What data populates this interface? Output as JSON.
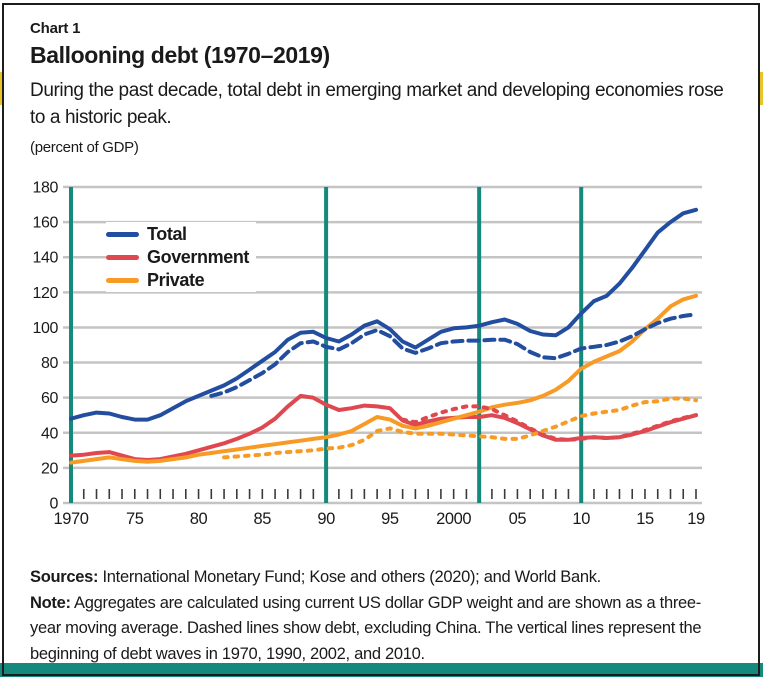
{
  "card": {
    "label": "Chart 1",
    "title": "Ballooning debt (1970–2019)",
    "subtitle": "During the past decade, total debt in emerging market and developing economies rose to a historic peak.",
    "unit_label": "(percent of GDP)",
    "sources_label": "Sources:",
    "sources_text": " International Monetary Fund; Kose and others (2020); and World Bank.",
    "note_label": "Note:",
    "note_text": " Aggregates are calculated using current US dollar GDP weight and are shown as a three-year moving average. Dashed lines show debt, excluding China. The vertical lines represent the beginning of debt waves in 1970, 1990, 2002, and 2010."
  },
  "colors": {
    "total": "#234EA0",
    "government": "#E04850",
    "private": "#F79B26",
    "wave_line": "#15897C",
    "gridline": "#C4C4C4",
    "tick": "#3A3A3A",
    "bottom_bar": "#15897C",
    "edge_accent": "#E9C428",
    "border": "#1C1C1C"
  },
  "chart_data": {
    "type": "line",
    "title": "Ballooning debt (1970–2019)",
    "ylabel": "(percent of GDP)",
    "xlabel": "",
    "x_range": [
      1970,
      2019
    ],
    "ylim": [
      0,
      180
    ],
    "grid": true,
    "legend_position": "top-left",
    "y_ticks": [
      0,
      20,
      40,
      60,
      80,
      100,
      120,
      140,
      160,
      180
    ],
    "x_tick_labels": [
      {
        "label": "1970",
        "year": 1970
      },
      {
        "label": "75",
        "year": 1975
      },
      {
        "label": "80",
        "year": 1980
      },
      {
        "label": "85",
        "year": 1985
      },
      {
        "label": "90",
        "year": 1990
      },
      {
        "label": "95",
        "year": 1995
      },
      {
        "label": "2000",
        "year": 2000
      },
      {
        "label": "05",
        "year": 2005
      },
      {
        "label": "10",
        "year": 2010
      },
      {
        "label": "15",
        "year": 2015
      },
      {
        "label": "19",
        "year": 2019
      }
    ],
    "vertical_lines": {
      "years": [
        1970,
        1990,
        2002,
        2010
      ],
      "color": "#15897C",
      "meaning": "beginning of debt waves"
    },
    "legend": [
      {
        "label": "Total",
        "color": "#234EA0"
      },
      {
        "label": "Government",
        "color": "#E04850"
      },
      {
        "label": "Private",
        "color": "#F79B26"
      }
    ],
    "series": [
      {
        "name": "Total",
        "color": "#234EA0",
        "style": "solid",
        "start_year": 1970,
        "values": [
          48,
          50,
          51.5,
          51,
          49,
          47.5,
          47.5,
          50,
          54,
          58,
          61,
          64,
          67,
          71,
          76,
          81,
          86,
          93,
          97,
          97.5,
          94,
          92,
          96,
          101,
          103.5,
          99,
          92,
          88.5,
          93,
          97.5,
          99.5,
          100,
          101,
          103,
          104.5,
          102,
          98,
          96,
          95.5,
          100,
          108,
          115,
          118,
          125,
          134,
          144,
          154,
          160,
          165,
          167
        ]
      },
      {
        "name": "Government",
        "color": "#E04850",
        "style": "solid",
        "start_year": 1970,
        "values": [
          27,
          27.5,
          28.5,
          29,
          27,
          25,
          24.5,
          25,
          26.5,
          28,
          30,
          32,
          34,
          36.5,
          39.5,
          43,
          48,
          55,
          61,
          60,
          56,
          53,
          54,
          55.5,
          55,
          54,
          47,
          44.5,
          46.5,
          48,
          48.5,
          49,
          49,
          50,
          48.5,
          45.5,
          42,
          38.5,
          36,
          36,
          37,
          37.5,
          37,
          37.5,
          39,
          41,
          43.5,
          46,
          48,
          50
        ]
      },
      {
        "name": "Private",
        "color": "#F79B26",
        "style": "solid",
        "start_year": 1970,
        "values": [
          23,
          24,
          25,
          26,
          25,
          24,
          23.5,
          24,
          25,
          26,
          27.5,
          28.5,
          29.5,
          30.5,
          31.5,
          32.5,
          33.5,
          34.5,
          35.5,
          36.5,
          37.5,
          39,
          41,
          45,
          49,
          47.5,
          44,
          42.5,
          44,
          46,
          48,
          50,
          52,
          54.5,
          56,
          57,
          58.5,
          61,
          64.5,
          69.5,
          76.5,
          80.5,
          83.5,
          86.5,
          92,
          99,
          105,
          112,
          116,
          118
        ]
      },
      {
        "name": "Total excluding China",
        "color": "#234EA0",
        "style": "dashed",
        "start_year": 1981,
        "values": [
          61,
          63,
          66,
          70,
          74,
          79,
          86,
          91,
          92,
          89,
          87.5,
          91,
          96,
          98.5,
          95,
          88,
          85.5,
          88,
          91,
          92,
          92.5,
          92.5,
          93,
          93,
          90.5,
          86,
          83,
          82.5,
          85,
          88,
          89,
          90,
          92,
          95,
          99,
          102.5,
          105,
          106.5,
          107.5
        ]
      },
      {
        "name": "Government excluding China",
        "color": "#E04850",
        "style": "dotted",
        "start_year": 1996,
        "values": [
          47.5,
          46,
          49,
          51.5,
          53.5,
          55,
          55,
          53.5,
          50,
          46.5,
          42.5,
          39,
          36.5,
          36,
          36.5,
          37.5,
          37,
          37.5,
          39.5,
          41.5,
          44,
          46.5,
          48.5,
          50
        ]
      },
      {
        "name": "Private excluding China",
        "color": "#F79B26",
        "style": "dotted",
        "start_year": 1982,
        "values": [
          26,
          26.5,
          27,
          27.5,
          28.5,
          29,
          29.5,
          30,
          31,
          31.5,
          33,
          36,
          41,
          42.5,
          40.5,
          39.5,
          39.5,
          39.5,
          39,
          38.5,
          38,
          37.5,
          36.5,
          36.5,
          38.5,
          41,
          43.5,
          46.5,
          49.5,
          51,
          52,
          53,
          55.5,
          57.5,
          58,
          59.5,
          59.5,
          58.5
        ]
      }
    ]
  }
}
